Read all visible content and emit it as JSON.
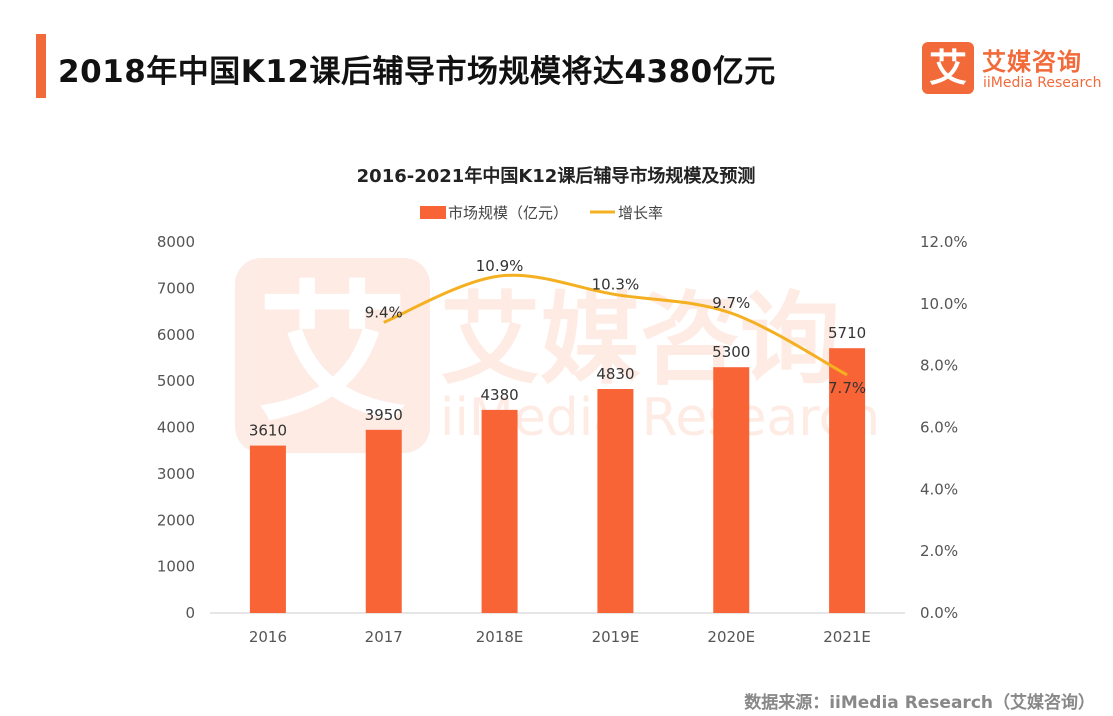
{
  "header": {
    "title": "2018年中国K12课后辅导市场规模将达4380亿元"
  },
  "logo": {
    "icon_char": "艾",
    "name_cn": "艾媒咨询",
    "name_en": "iiMedia Research"
  },
  "source": "数据来源：iiMedia Research（艾媒咨询）",
  "colors": {
    "accent": "#f26a3a",
    "bar": "#f96436",
    "line": "#f5b021"
  },
  "chart_data": {
    "type": "bar",
    "title": "2016-2021年中国K12课后辅导市场规模及预测",
    "categories": [
      "2016",
      "2017",
      "2018E",
      "2019E",
      "2020E",
      "2021E"
    ],
    "series": [
      {
        "name": "市场规模（亿元）",
        "type": "bar",
        "axis": "left",
        "values": [
          3610,
          3950,
          4380,
          4830,
          5300,
          5710
        ],
        "labels": [
          "3610",
          "3950",
          "4380",
          "4830",
          "5300",
          "5710"
        ]
      },
      {
        "name": "增长率",
        "type": "line",
        "axis": "right",
        "values": [
          null,
          9.4,
          10.9,
          10.3,
          9.7,
          7.7
        ],
        "labels": [
          "",
          "9.4%",
          "10.9%",
          "10.3%",
          "9.7%",
          "7.7%"
        ]
      }
    ],
    "ylim": [
      0,
      8000
    ],
    "yticks": [
      "0",
      "1000",
      "2000",
      "3000",
      "4000",
      "5000",
      "6000",
      "7000",
      "8000"
    ],
    "y2lim": [
      0,
      12
    ],
    "y2ticks": [
      "0.0%",
      "2.0%",
      "4.0%",
      "6.0%",
      "8.0%",
      "10.0%",
      "12.0%"
    ],
    "legend": "top-center",
    "grid": false
  }
}
